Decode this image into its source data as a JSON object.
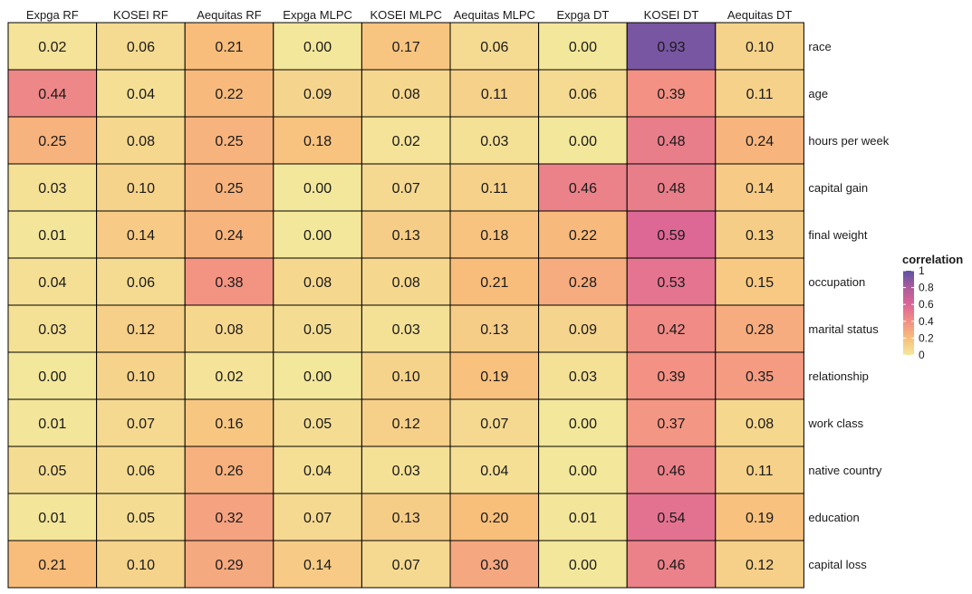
{
  "chart_data": {
    "type": "heatmap",
    "columns": [
      "Expga RF",
      "KOSEI RF",
      "Aequitas RF",
      "Expga MLPC",
      "KOSEI MLPC",
      "Aequitas MLPC",
      "Expga DT",
      "KOSEI DT",
      "Aequitas DT"
    ],
    "rows": [
      "race",
      "age",
      "hours per week",
      "capital gain",
      "final weight",
      "occupation",
      "marital status",
      "relationship",
      "work class",
      "native country",
      "education",
      "capital loss"
    ],
    "values": [
      [
        0.02,
        0.06,
        0.21,
        0.0,
        0.17,
        0.06,
        0.0,
        0.93,
        0.1
      ],
      [
        0.44,
        0.04,
        0.22,
        0.09,
        0.08,
        0.11,
        0.06,
        0.39,
        0.11
      ],
      [
        0.25,
        0.08,
        0.25,
        0.18,
        0.02,
        0.03,
        0.0,
        0.48,
        0.24
      ],
      [
        0.03,
        0.1,
        0.25,
        0.0,
        0.07,
        0.11,
        0.46,
        0.48,
        0.14
      ],
      [
        0.01,
        0.14,
        0.24,
        0.0,
        0.13,
        0.18,
        0.22,
        0.59,
        0.13
      ],
      [
        0.04,
        0.06,
        0.38,
        0.08,
        0.08,
        0.21,
        0.28,
        0.53,
        0.15
      ],
      [
        0.03,
        0.12,
        0.08,
        0.05,
        0.03,
        0.13,
        0.09,
        0.42,
        0.28
      ],
      [
        0.0,
        0.1,
        0.02,
        0.0,
        0.1,
        0.19,
        0.03,
        0.39,
        0.35
      ],
      [
        0.01,
        0.07,
        0.16,
        0.05,
        0.12,
        0.07,
        0.0,
        0.37,
        0.08
      ],
      [
        0.05,
        0.06,
        0.26,
        0.04,
        0.03,
        0.04,
        0.0,
        0.46,
        0.11
      ],
      [
        0.01,
        0.05,
        0.32,
        0.07,
        0.13,
        0.2,
        0.01,
        0.54,
        0.19
      ],
      [
        0.21,
        0.1,
        0.29,
        0.14,
        0.07,
        0.3,
        0.0,
        0.46,
        0.12
      ]
    ],
    "value_format": "2-decimals",
    "legend": {
      "title": "correlation",
      "ticks": [
        "1",
        "0.8",
        "0.6",
        "0.4",
        "0.2",
        "0"
      ],
      "tick_values": [
        1,
        0.8,
        0.6,
        0.4,
        0.2,
        0
      ],
      "range": [
        0,
        1
      ],
      "position": "right"
    },
    "color_scale": {
      "stops": [
        {
          "value": 0.0,
          "color": "#f3e79b"
        },
        {
          "value": 0.2,
          "color": "#f8bf7b"
        },
        {
          "value": 0.4,
          "color": "#f28f84"
        },
        {
          "value": 0.6,
          "color": "#dc6596"
        },
        {
          "value": 0.8,
          "color": "#ad5c9b"
        },
        {
          "value": 1.0,
          "color": "#5c53a5"
        }
      ]
    },
    "grid_color": "#000000"
  }
}
